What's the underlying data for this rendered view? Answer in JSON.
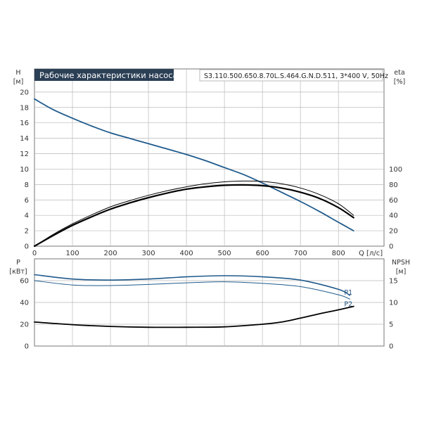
{
  "header": {
    "title": "Рабочие характеристики насоса",
    "model": "S3.110.500.650.8.70L.S.464.G.N.D.511, 3*400 V, 50Hz"
  },
  "colors": {
    "head_curve": "#1f5a8c",
    "eta_curve": "#000000",
    "p1_curve": "#1f5a8c",
    "p2_curve": "#1f5a8c",
    "npsh_curve": "#000000",
    "grid": "#b9b9b9",
    "title_bg": "#2b3f55"
  },
  "chart_data": [
    {
      "type": "line",
      "name": "upper",
      "xlabel": "Q [л/с]",
      "x_axis": {
        "unit_label": "Q [л/с]",
        "ticks": [
          0,
          100,
          200,
          300,
          400,
          500,
          600,
          700,
          800
        ],
        "xlim": [
          0,
          920
        ]
      },
      "left_axis": {
        "label": "H",
        "unit": "[м]",
        "ticks": [
          0,
          2,
          4,
          6,
          8,
          10,
          12,
          14,
          16,
          18,
          20
        ],
        "ylim": [
          0,
          23
        ]
      },
      "right_axis": {
        "label": "eta",
        "unit": "[%]",
        "ticks": [
          0,
          20,
          40,
          60,
          80,
          100
        ],
        "ylim": [
          0,
          230
        ]
      },
      "grid": true,
      "series": [
        {
          "axis": "left",
          "x": [
            0,
            50,
            100,
            150,
            200,
            250,
            300,
            350,
            400,
            450,
            500,
            550,
            600,
            650,
            700,
            750,
            800,
            840
          ],
          "y": [
            19.1,
            17.7,
            16.6,
            15.6,
            14.7,
            14.0,
            13.3,
            12.6,
            11.9,
            11.1,
            10.2,
            9.3,
            8.2,
            7.0,
            5.8,
            4.5,
            3.1,
            2.0
          ]
        },
        {
          "axis": "right",
          "x": [
            0,
            50,
            100,
            150,
            200,
            250,
            300,
            350,
            400,
            450,
            500,
            550,
            600,
            650,
            700,
            750,
            800,
            840
          ],
          "y": [
            0,
            14,
            27,
            38,
            48,
            56,
            63,
            69,
            74,
            77,
            79,
            79.5,
            78.5,
            75.5,
            70,
            62,
            50,
            37
          ]
        },
        {
          "axis": "right",
          "x": [
            0,
            50,
            100,
            150,
            200,
            250,
            300,
            350,
            400,
            450,
            500,
            550,
            600,
            650,
            700,
            750,
            800,
            840
          ],
          "y": [
            0,
            15.5,
            29,
            40.5,
            51,
            59,
            66,
            72,
            77,
            81,
            83.5,
            84.5,
            84,
            81,
            75.5,
            67,
            55,
            40
          ]
        }
      ]
    },
    {
      "type": "line",
      "name": "lower",
      "left_axis": {
        "label": "P",
        "unit": "[кВт]",
        "ticks": [
          0,
          20,
          40,
          60
        ],
        "ylim": [
          0,
          80
        ]
      },
      "right_axis": {
        "label": "NPSH",
        "unit": "[м]",
        "ticks": [
          0,
          5,
          10,
          15
        ],
        "ylim": [
          0,
          20
        ]
      },
      "grid": true,
      "series": [
        {
          "name": "P1",
          "axis": "left",
          "x": [
            0,
            100,
            200,
            300,
            400,
            500,
            600,
            700,
            800,
            830
          ],
          "y": [
            65.5,
            61.5,
            60.5,
            61.5,
            63.5,
            64.5,
            63.5,
            60.5,
            52,
            46.5
          ]
        },
        {
          "name": "P2",
          "axis": "left",
          "x": [
            0,
            100,
            200,
            300,
            400,
            500,
            600,
            700,
            800,
            830
          ],
          "y": [
            60,
            56,
            55.5,
            56.5,
            58,
            59,
            57.5,
            54.5,
            47,
            43
          ]
        },
        {
          "axis": "right",
          "x": [
            0,
            100,
            200,
            300,
            400,
            500,
            600,
            650,
            700,
            750,
            800,
            840
          ],
          "y": [
            5.5,
            4.9,
            4.5,
            4.3,
            4.3,
            4.4,
            5.0,
            5.5,
            6.4,
            7.4,
            8.3,
            9.1
          ]
        }
      ]
    }
  ]
}
